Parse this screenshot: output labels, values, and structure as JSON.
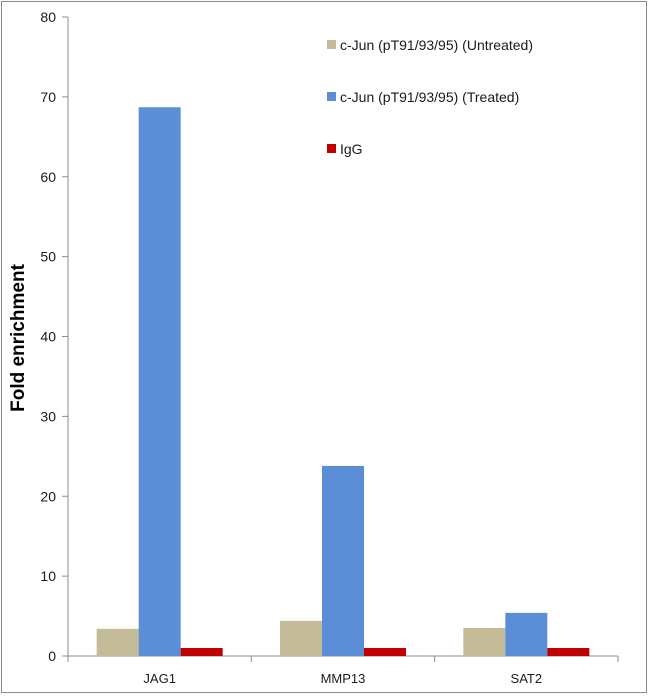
{
  "chart_data": {
    "type": "bar",
    "categories": [
      "JAG1",
      "MMP13",
      "SAT2"
    ],
    "series": [
      {
        "name": "c-Jun (pT91/93/95) (Untreated)",
        "color": "#c4bb99",
        "values": [
          3.4,
          4.4,
          3.5
        ]
      },
      {
        "name": "c-Jun (pT91/93/95) (Treated)",
        "color": "#5b8ed6",
        "values": [
          68.7,
          23.8,
          5.4
        ]
      },
      {
        "name": "IgG",
        "color": "#c00000",
        "values": [
          1.0,
          1.0,
          1.0
        ]
      }
    ],
    "ylabel": "Fold enrichment",
    "xlabel": "",
    "ylim": [
      0,
      80
    ],
    "yticks": [
      0,
      10,
      20,
      30,
      40,
      50,
      60,
      70,
      80
    ],
    "grid": false,
    "legend_position": "top-right"
  }
}
